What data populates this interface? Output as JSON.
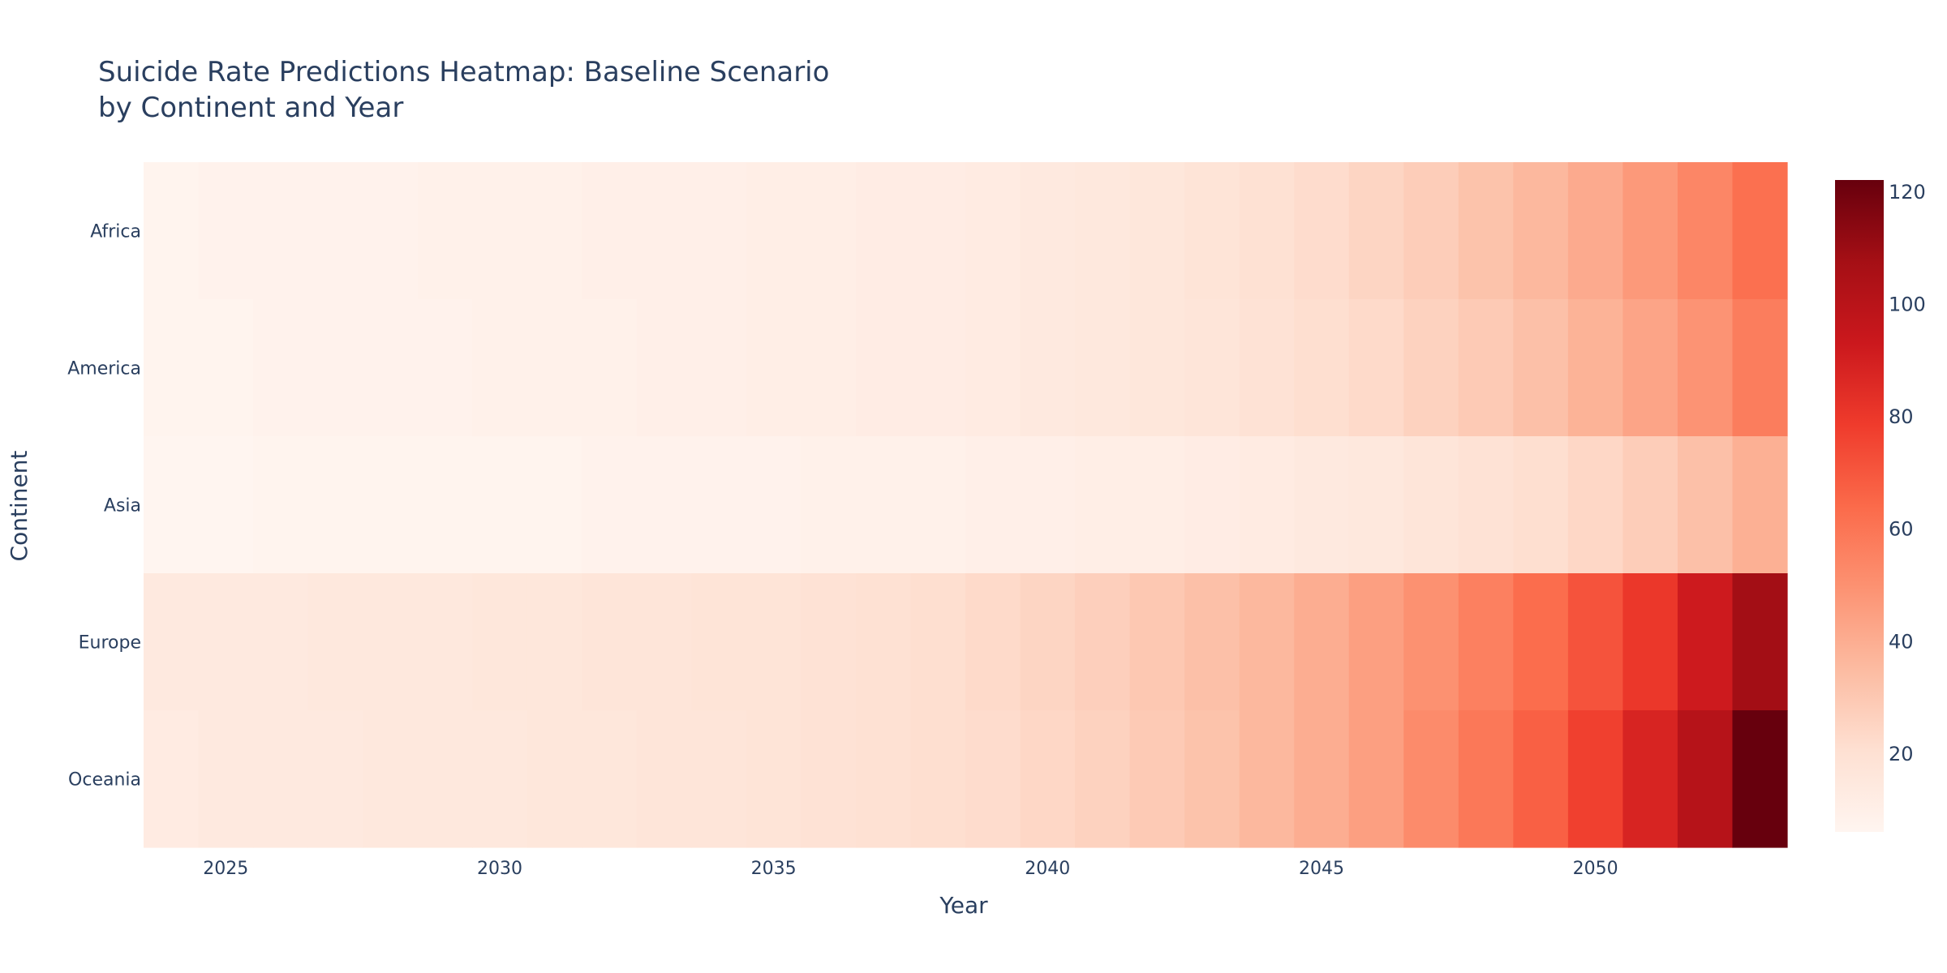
{
  "chart_data": {
    "type": "heatmap",
    "title_lines": [
      "Suicide Rate Predictions Heatmap: Baseline Scenario",
      "by Continent and Year"
    ],
    "xlabel": "Year",
    "ylabel": "Continent",
    "x": [
      2024,
      2025,
      2026,
      2027,
      2028,
      2029,
      2030,
      2031,
      2032,
      2033,
      2034,
      2035,
      2036,
      2037,
      2038,
      2039,
      2040,
      2041,
      2042,
      2043,
      2044,
      2045,
      2046,
      2047,
      2048,
      2049,
      2050,
      2051,
      2052,
      2053
    ],
    "x_ticks": [
      2025,
      2030,
      2035,
      2040,
      2045,
      2050
    ],
    "categories": [
      "Africa",
      "America",
      "Asia",
      "Europe",
      "Oceania"
    ],
    "z": [
      [
        7,
        8,
        8,
        8,
        8,
        9,
        9,
        9,
        10,
        10,
        10,
        11,
        11,
        12,
        12,
        13,
        14,
        15,
        16,
        18,
        20,
        22,
        25,
        28,
        32,
        36,
        41,
        47,
        54,
        62
      ],
      [
        7,
        7,
        8,
        8,
        8,
        8,
        9,
        9,
        9,
        10,
        10,
        11,
        11,
        12,
        12,
        13,
        14,
        15,
        16,
        17,
        19,
        21,
        23,
        26,
        29,
        33,
        38,
        43,
        49,
        57
      ],
      [
        6,
        6,
        7,
        7,
        7,
        7,
        7,
        7,
        8,
        8,
        8,
        8,
        9,
        9,
        9,
        10,
        10,
        11,
        11,
        12,
        13,
        14,
        15,
        17,
        19,
        21,
        24,
        28,
        33,
        39
      ],
      [
        14,
        14,
        14,
        15,
        15,
        15,
        16,
        16,
        17,
        17,
        18,
        18,
        19,
        20,
        21,
        23,
        25,
        27,
        30,
        33,
        36,
        40,
        45,
        50,
        56,
        63,
        71,
        80,
        92,
        108
      ],
      [
        13,
        14,
        14,
        14,
        15,
        15,
        15,
        16,
        16,
        17,
        17,
        18,
        19,
        20,
        21,
        22,
        24,
        26,
        29,
        32,
        36,
        40,
        45,
        52,
        59,
        67,
        77,
        88,
        101,
        122
      ]
    ],
    "zlim": [
      6,
      122
    ],
    "colorbar_ticks": [
      20,
      40,
      60,
      80,
      100,
      120
    ],
    "colorscale": "Reds",
    "colors": {
      "text": "#2a3f5f",
      "scale_stops": [
        "#fff5f0",
        "#fee0d2",
        "#fcbba1",
        "#fc9272",
        "#fb6a4a",
        "#ef3b2c",
        "#cb181d",
        "#a50f15",
        "#67000d"
      ]
    }
  }
}
